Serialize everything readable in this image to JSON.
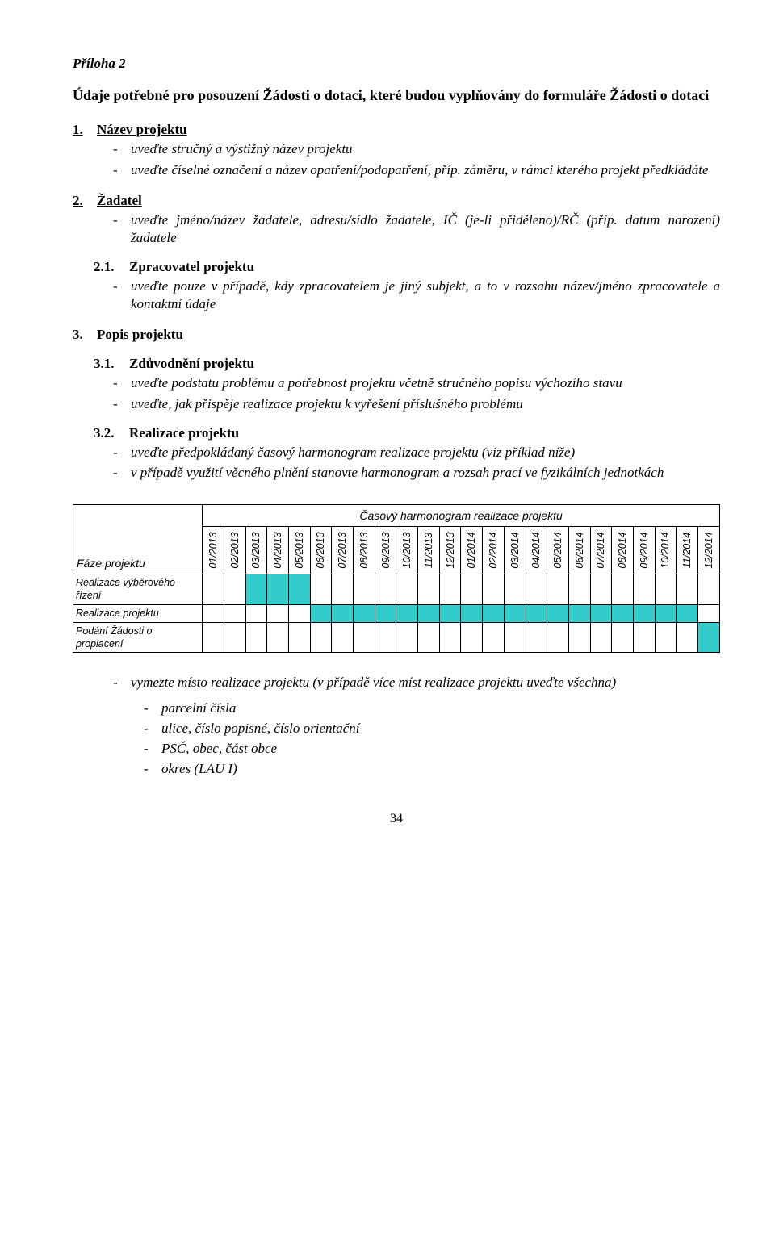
{
  "attachment": "Příloha 2",
  "mainTitle": "Údaje potřebné pro posouzení Žádosti o dotaci, které budou vyplňovány do formuláře Žádosti o dotaci",
  "s1": {
    "num": "1.",
    "title": "Název projektu",
    "b1": "uveďte stručný a výstižný název projektu",
    "b2": "uveďte číselné označení a název opatření/podopatření, příp. záměru, v rámci kterého projekt předkládáte"
  },
  "s2": {
    "num": "2.",
    "title": "Žadatel",
    "b1": "uveďte jméno/název žadatele, adresu/sídlo žadatele, IČ (je-li přiděleno)/RČ (příp. datum narození) žadatele"
  },
  "s21": {
    "num": "2.1.",
    "title": "Zpracovatel projektu",
    "b1": "uveďte pouze v případě, kdy zpracovatelem je jiný subjekt, a to v rozsahu název/jméno zpracovatele a kontaktní údaje"
  },
  "s3": {
    "num": "3.",
    "title": "Popis projektu"
  },
  "s31": {
    "num": "3.1.",
    "title": "Zdůvodnění projektu",
    "b1": "uveďte podstatu problému a potřebnost projektu včetně stručného popisu výchozího stavu",
    "b2": "uveďte, jak přispěje realizace projektu k vyřešení příslušného problému"
  },
  "s32": {
    "num": "3.2.",
    "title": "Realizace projektu",
    "b1": "uveďte předpokládaný časový harmonogram realizace projektu (viz příklad níže)",
    "b2": "v případě využití věcného plnění stanovte harmonogram a rozsah prací ve fyzikálních jednotkách"
  },
  "gantt": {
    "title": "Časový harmonogram realizace projektu",
    "phaseHeader": "Fáze projektu",
    "months": [
      "01/2013",
      "02/2013",
      "03/2013",
      "04/2013",
      "05/2013",
      "06/2013",
      "07/2013",
      "08/2013",
      "09/2013",
      "10/2013",
      "11/2013",
      "12/2013",
      "01/2014",
      "02/2014",
      "03/2014",
      "04/2014",
      "05/2014",
      "06/2014",
      "07/2014",
      "08/2014",
      "09/2014",
      "10/2014",
      "11/2014",
      "12/2014"
    ],
    "rows": [
      {
        "label": "Realizace výběrového řízení",
        "fill": [
          2,
          3,
          4
        ]
      },
      {
        "label": "Realizace projektu",
        "fill": [
          5,
          6,
          7,
          8,
          9,
          10,
          11,
          12,
          13,
          14,
          15,
          16,
          17,
          18,
          19,
          20,
          21,
          22
        ]
      },
      {
        "label": "Podání Žádosti o proplacení",
        "fill": [
          23
        ]
      }
    ],
    "fillColor": "#33cccc"
  },
  "after": {
    "b1": "vymezte místo realizace projektu (v případě více míst realizace projektu uveďte všechna)",
    "i1": "parcelní čísla",
    "i2": "ulice, číslo popisné, číslo orientační",
    "i3": "PSČ, obec, část obce",
    "i4": "okres (LAU I)"
  },
  "pageNumber": "34"
}
